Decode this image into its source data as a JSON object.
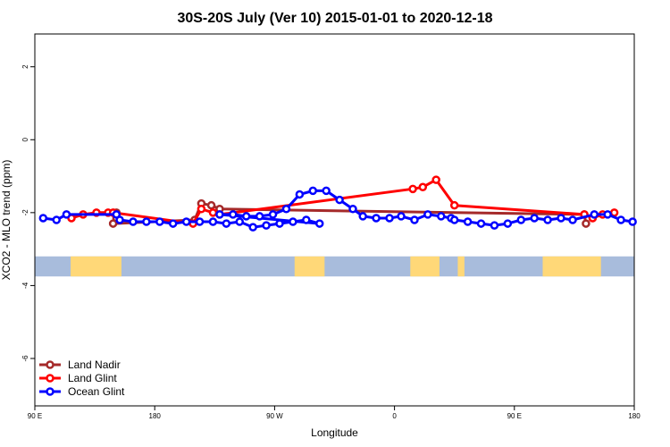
{
  "chart_data": {
    "type": "line",
    "title": "30S-20S July (Ver 10)   2015-01-01 to 2020-12-18",
    "xlabel": "Longitude",
    "ylabel": "XCO2 - MLO trend (ppm)",
    "xlim": [
      90,
      450
    ],
    "ylim": [
      -7.3,
      2.9
    ],
    "x_ticks": [
      {
        "value": 90,
        "label": "90 E"
      },
      {
        "value": 162,
        "label": "180"
      },
      {
        "value": 234,
        "label": "90 W"
      },
      {
        "value": 306,
        "label": "0"
      },
      {
        "value": 378,
        "label": "90 E"
      },
      {
        "value": 450,
        "label": "180"
      }
    ],
    "y_ticks": [
      2,
      0,
      -2,
      -4,
      -6
    ],
    "grid": false,
    "legend_position": "bottom-left",
    "series": [
      {
        "name": "Land Nadir",
        "color": "#a52a2a",
        "x": [
          139,
          139,
          137,
          186,
          190,
          196,
          201,
          420,
          421
        ],
        "y": [
          -2.0,
          -2.15,
          -2.3,
          -2.2,
          -1.75,
          -1.8,
          -1.9,
          -2.05,
          -2.3
        ]
      },
      {
        "name": "Land Glint",
        "color": "#ff0000",
        "x": [
          112,
          119,
          127,
          134,
          137,
          185,
          190,
          197,
          201,
          317,
          323,
          331,
          342,
          420,
          425,
          431,
          438
        ],
        "y": [
          -2.15,
          -2.05,
          -2.0,
          -2.0,
          -2.0,
          -2.3,
          -1.9,
          -2.0,
          -2.05,
          -1.35,
          -1.3,
          -1.1,
          -1.8,
          -2.05,
          -2.15,
          -2.05,
          -2.0
        ]
      },
      {
        "name": "Ocean Glint",
        "color": "#0000ff",
        "x": [
          95,
          103,
          109,
          139,
          141,
          149,
          157,
          165,
          173,
          181,
          189,
          197,
          205,
          213,
          221,
          229,
          237,
          245,
          253,
          261,
          201,
          209,
          217,
          225,
          233,
          241,
          249,
          257,
          265,
          273,
          281,
          287,
          295,
          303,
          310,
          318,
          326,
          334,
          340,
          342,
          350,
          358,
          366,
          374,
          382,
          390,
          398,
          406,
          413,
          426,
          434,
          442,
          449
        ],
        "y": [
          -2.15,
          -2.2,
          -2.05,
          -2.05,
          -2.2,
          -2.25,
          -2.25,
          -2.25,
          -2.3,
          -2.25,
          -2.25,
          -2.25,
          -2.3,
          -2.25,
          -2.4,
          -2.35,
          -2.3,
          -2.25,
          -2.2,
          -2.3,
          -2.05,
          -2.05,
          -2.1,
          -2.1,
          -2.05,
          -1.9,
          -1.5,
          -1.4,
          -1.4,
          -1.65,
          -1.9,
          -2.1,
          -2.15,
          -2.15,
          -2.1,
          -2.2,
          -2.05,
          -2.1,
          -2.15,
          -2.2,
          -2.25,
          -2.3,
          -2.35,
          -2.3,
          -2.2,
          -2.15,
          -2.2,
          -2.15,
          -2.2,
          -2.05,
          -2.05,
          -2.2,
          -2.25
        ]
      }
    ],
    "background_band": {
      "y_top": -3.2,
      "y_bottom": -3.75,
      "ocean_color": "#a8bcdc",
      "land_color": "#ffd878",
      "land_ranges": [
        [
          111.5,
          142
        ],
        [
          246,
          264
        ],
        [
          315.5,
          333
        ],
        [
          344,
          348
        ],
        [
          395,
          430
        ]
      ]
    }
  }
}
